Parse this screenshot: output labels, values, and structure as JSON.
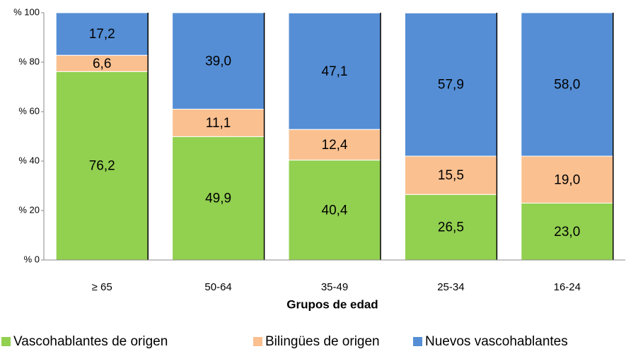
{
  "chart_data": {
    "type": "stacked_bar",
    "xlabel": "Grupos de edad",
    "categories": [
      "≥ 65",
      "50-64",
      "35-49",
      "25-34",
      "16-24"
    ],
    "series": [
      {
        "name": "Vascohablantes de origen",
        "color": "#92d050",
        "values": [
          76.2,
          49.9,
          40.4,
          26.5,
          23.0
        ],
        "value_labels": [
          "76,2",
          "49,9",
          "40,4",
          "26,5",
          "23,0"
        ]
      },
      {
        "name": "Bilingües de origen",
        "color": "#fac090",
        "values": [
          6.6,
          11.1,
          12.4,
          15.5,
          19.0
        ],
        "value_labels": [
          "6,6",
          "11,1",
          "12,4",
          "15,5",
          "19,0"
        ]
      },
      {
        "name": "Nuevos vascohablantes",
        "color": "#558ed5",
        "values": [
          17.2,
          39.0,
          47.1,
          57.9,
          58.0
        ],
        "value_labels": [
          "17,2",
          "39,0",
          "47,1",
          "57,9",
          "58,0"
        ]
      }
    ],
    "ylim": [
      0,
      100
    ],
    "yticks": [
      {
        "value": 0,
        "label": "% 0"
      },
      {
        "value": 20,
        "label": "% 20"
      },
      {
        "value": 40,
        "label": "% 40"
      },
      {
        "value": 60,
        "label": "% 60"
      },
      {
        "value": 80,
        "label": "% 80"
      },
      {
        "value": 100,
        "label": "% 100"
      }
    ],
    "legend": "bottom"
  }
}
